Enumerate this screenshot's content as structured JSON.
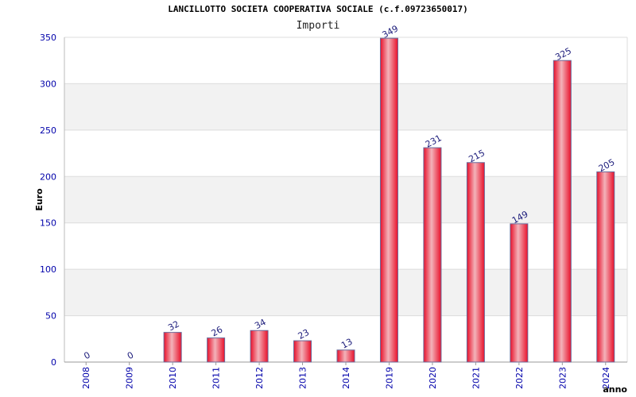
{
  "chart_data": {
    "type": "bar",
    "title": "LANCILLOTTO SOCIETA COOPERATIVA SOCIALE (c.f.09723650017)",
    "subtitle": "Importi",
    "xlabel": "anno",
    "ylabel": "Euro",
    "categories": [
      "2008",
      "2009",
      "2010",
      "2011",
      "2012",
      "2013",
      "2014",
      "2019",
      "2020",
      "2021",
      "2022",
      "2023",
      "2024"
    ],
    "values": [
      0,
      0,
      32,
      26,
      34,
      23,
      13,
      349,
      231,
      215,
      149,
      325,
      205
    ],
    "ylim": [
      0,
      350
    ],
    "yticks": [
      0,
      50,
      100,
      150,
      200,
      250,
      300,
      350
    ],
    "grid": "horizontal, alternating bands",
    "legend": "none",
    "colors": {
      "bar": "#e8102a",
      "bar_highlight": "#f3b3ba",
      "bar_edge": "#6a6a9a",
      "tick_label": "#0000aa",
      "data_label": "#1a1a7a",
      "band": "#f2f2f2",
      "gridline": "#dcdcdc"
    }
  }
}
